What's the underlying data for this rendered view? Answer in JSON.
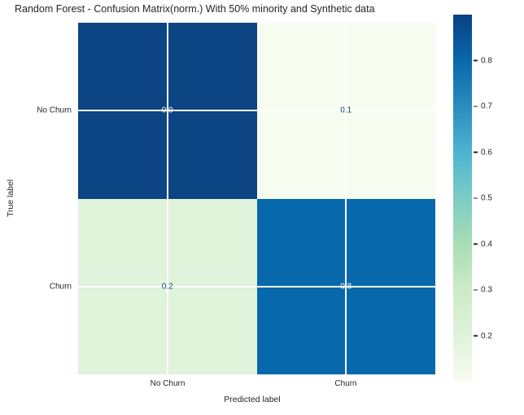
{
  "chart_data": {
    "type": "heatmap",
    "title": "Random Forest - Confusion Matrix(norm.) With 50% minority and Synthetic data",
    "xlabel": "Predicted label",
    "ylabel": "True label",
    "x_categories": [
      "No Churn",
      "Churn"
    ],
    "y_categories": [
      "No Churn",
      "Churn"
    ],
    "values": [
      [
        0.9,
        0.1
      ],
      [
        0.2,
        0.8
      ]
    ],
    "vmin": 0.1,
    "vmax": 0.9,
    "colormap": "GnBu",
    "colorbar_ticks": [
      0.8,
      0.7,
      0.6,
      0.5,
      0.4,
      0.3,
      0.2
    ],
    "grid": true,
    "annotations": true,
    "legend_position": "right-colorbar"
  },
  "title": "Random Forest - Confusion Matrix(norm.) With 50% minority and Synthetic data",
  "axes": {
    "xlabel": "Predicted label",
    "ylabel": "True label",
    "xticks": {
      "c1": "No Churn",
      "c2": "Churn"
    },
    "yticks": {
      "r1": "No Churn",
      "r2": "Churn"
    }
  },
  "matrix": {
    "cells": [
      {
        "value": "0.9",
        "bg": "#0c4484",
        "fg": "#ffffff"
      },
      {
        "value": "0.1",
        "bg": "#f7fcf0",
        "fg": "#10477f"
      },
      {
        "value": "0.2",
        "bg": "#e0f3db",
        "fg": "#10477f"
      },
      {
        "value": "0.8",
        "bg": "#0868ac",
        "fg": "#ffffff"
      }
    ]
  },
  "colorbar": {
    "ticks": [
      "0.8",
      "0.7",
      "0.6",
      "0.5",
      "0.4",
      "0.3",
      "0.2"
    ],
    "gradient_low": "#f7fcf0",
    "gradient_high": "#084081"
  },
  "colors": {
    "text": "#262626",
    "gridline": "#ffffff",
    "background": "#ffffff"
  }
}
